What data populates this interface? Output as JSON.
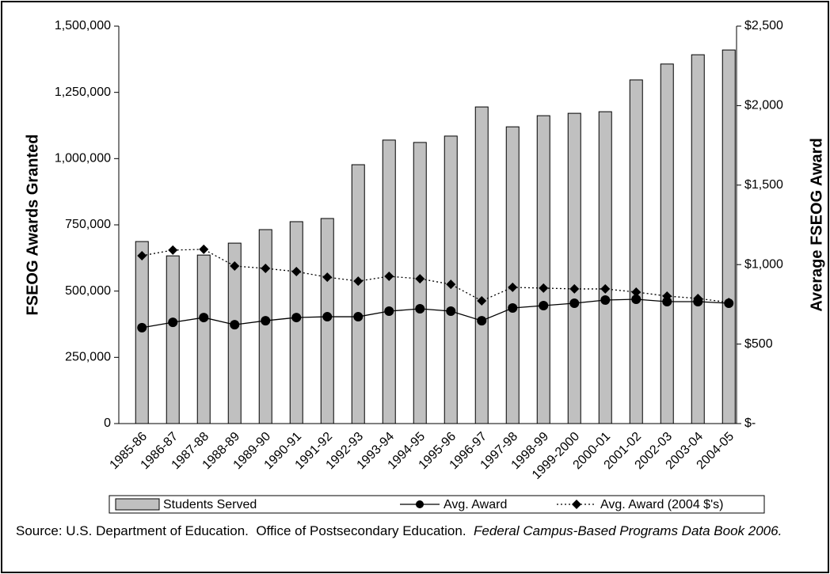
{
  "chart_data": {
    "type": "bar_line",
    "categories": [
      "1985-86",
      "1986-87",
      "1987-88",
      "1988-89",
      "1989-90",
      "1990-91",
      "1991-92",
      "1992-93",
      "1993-94",
      "1994-95",
      "1995-96",
      "1996-97",
      "1997-98",
      "1998-99",
      "1999-2000",
      "2000-01",
      "2001-02",
      "2002-03",
      "2003-04",
      "2004-05"
    ],
    "series": [
      {
        "name": "Students Served",
        "type": "bar",
        "color": "#c0c0c0",
        "axis": "y",
        "values": [
          687000,
          633000,
          636000,
          681000,
          732000,
          762000,
          774000,
          977000,
          1070000,
          1061000,
          1085000,
          1195000,
          1120000,
          1162000,
          1171000,
          1177000,
          1297000,
          1357000,
          1392000,
          1410000
        ]
      },
      {
        "name": "Avg. Award",
        "type": "line",
        "color": "#000000",
        "axis": "y2",
        "marker": "circle",
        "line_style": "solid",
        "values": [
          603,
          637,
          667,
          622,
          647,
          667,
          672,
          672,
          707,
          722,
          707,
          647,
          727,
          742,
          757,
          777,
          782,
          767,
          767,
          757
        ]
      },
      {
        "name": "Avg. Award (2004 $'s)",
        "type": "line",
        "color": "#000000",
        "axis": "y2",
        "marker": "diamond",
        "line_style": "dotted",
        "values": [
          1056,
          1091,
          1096,
          991,
          976,
          956,
          921,
          896,
          926,
          911,
          876,
          772,
          857,
          852,
          847,
          847,
          827,
          802,
          787,
          762
        ]
      }
    ],
    "y_label": "FSEOG Awards Granted",
    "y2_label": "Average FSEOG Award",
    "ylim": [
      0,
      1500000
    ],
    "yticks": [
      0,
      {
        "value": 250000,
        "label": "250,000"
      },
      {
        "value": 500000,
        "label": "500,000"
      },
      {
        "value": 750000,
        "label": "750,000"
      },
      {
        "value": 1000000,
        "label": "1,000,000"
      },
      {
        "value": 1250000,
        "label": "1,250,000"
      },
      {
        "value": 1500000,
        "label": "1,500,000"
      }
    ],
    "y2lim": [
      0,
      2500
    ],
    "y2ticks": [
      {
        "value": 0,
        "label": "$-"
      },
      {
        "value": 500,
        "label": "$500"
      },
      {
        "value": 1000,
        "label": "$1,000"
      },
      {
        "value": 1500,
        "label": "$1,500"
      },
      {
        "value": 2000,
        "label": "$2,000"
      },
      {
        "value": 2500,
        "label": "$2,500"
      }
    ],
    "legend": "bottom",
    "source": "Source: U.S. Department of Education.  Office of Postsecondary Education.  ",
    "source_italic": "Federal Campus-Based Programs Data Book 2006."
  }
}
